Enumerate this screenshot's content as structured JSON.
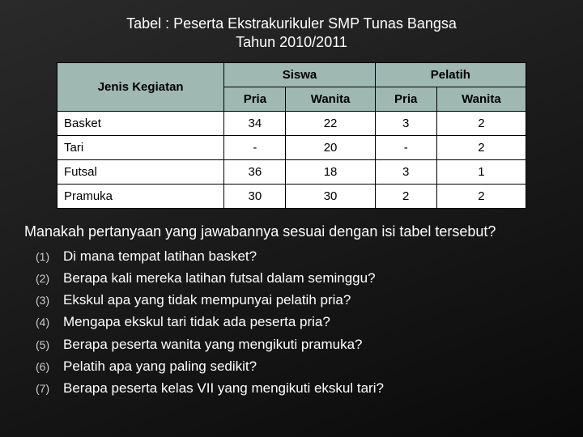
{
  "title_line1": "Tabel : Peserta Ekstrakurikuler SMP Tunas Bangsa",
  "title_line2": "Tahun 2010/2011",
  "table": {
    "corner": "Jenis Kegiatan",
    "group_headers": [
      "Siswa",
      "Pelatih"
    ],
    "sub_headers": [
      "Pria",
      "Wanita",
      "Pria",
      "Wanita"
    ],
    "rows": [
      {
        "label": "Basket",
        "cells": [
          "34",
          "22",
          "3",
          "2"
        ]
      },
      {
        "label": "Tari",
        "cells": [
          "-",
          "20",
          "-",
          "2"
        ]
      },
      {
        "label": "Futsal",
        "cells": [
          "36",
          "18",
          "3",
          "1"
        ]
      },
      {
        "label": "Pramuka",
        "cells": [
          "30",
          "30",
          "2",
          "2"
        ]
      }
    ]
  },
  "question": "Manakah pertanyaan yang jawabannya sesuai dengan isi tabel tersebut?",
  "options": [
    "Di mana tempat latihan basket?",
    "Berapa kali mereka latihan futsal dalam seminggu?",
    "Ekskul apa yang tidak mempunyai pelatih pria?",
    "Mengapa ekskul tari tidak ada peserta pria?",
    "Berapa peserta wanita yang mengikuti pramuka?",
    "Pelatih apa yang paling sedikit?",
    "Berapa peserta kelas VII yang mengikuti ekskul tari?"
  ],
  "colors": {
    "header_bg": "#9fb8b2",
    "border": "#000000",
    "page_bg": "#1a1a1a",
    "text_light": "#ffffff"
  }
}
